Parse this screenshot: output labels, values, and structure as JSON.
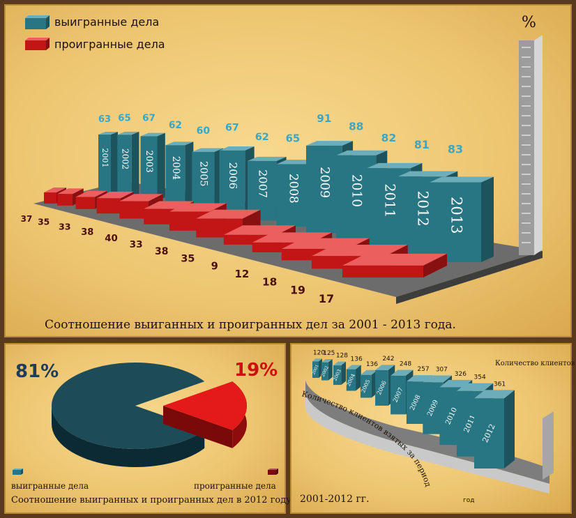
{
  "colors": {
    "won": "#2f8a9b",
    "lost": "#e41a1a",
    "panel": "#eec672"
  },
  "chart_data": [
    {
      "type": "bar",
      "title": "Соотношение выиганных и проигранных дел за 2001 - 2013 года.",
      "ylabel": "%",
      "categories": [
        "2001",
        "2002",
        "2003",
        "2004",
        "2005",
        "2006",
        "2007",
        "2008",
        "2009",
        "2010",
        "2011",
        "2012",
        "2013"
      ],
      "series": [
        {
          "name": "выигранные дела",
          "values": [
            63,
            65,
            67,
            62,
            60,
            67,
            62,
            65,
            91,
            88,
            82,
            81,
            83
          ]
        },
        {
          "name": "проигранные дела",
          "values": [
            37,
            35,
            33,
            38,
            40,
            33,
            38,
            35,
            9,
            12,
            18,
            19,
            17
          ]
        }
      ],
      "legend": "top-left"
    },
    {
      "type": "pie",
      "title": "Соотношение выигранных и проигранных дел в 2012 году",
      "series": [
        {
          "name": "выигранные дела",
          "value": 81,
          "label": "81%"
        },
        {
          "name": "проигранные дела",
          "value": 19,
          "label": "19%"
        }
      ],
      "legend": "bottom"
    },
    {
      "type": "bar",
      "title": "2001-2012 гг.",
      "subtitle": "Количество клиентов",
      "xlabel": "год",
      "ylabel": "Количество клиентов взятых за период",
      "categories": [
        "2001",
        "2002",
        "2003",
        "2004",
        "2005",
        "2006",
        "2007",
        "2008",
        "2009",
        "2010",
        "2011",
        "2012"
      ],
      "values": [
        120,
        125,
        128,
        136,
        136,
        242,
        248,
        257,
        307,
        326,
        354,
        361
      ]
    }
  ]
}
